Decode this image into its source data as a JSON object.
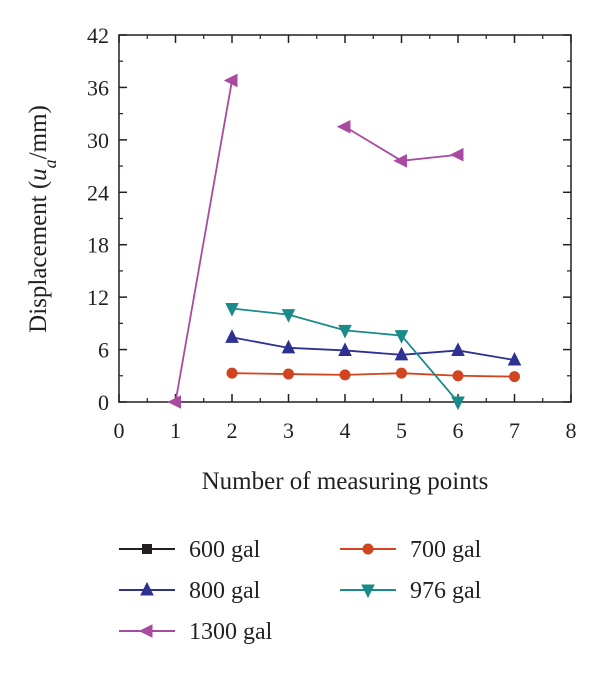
{
  "chart_data": {
    "type": "line",
    "xlabel": "Number of measuring points",
    "ylabel": {
      "prefix": "Displacement (",
      "var": "u",
      "sub": "a",
      "suffix": "/mm)"
    },
    "xlim": [
      0,
      8
    ],
    "ylim": [
      0,
      42
    ],
    "xticks": [
      0,
      1,
      2,
      3,
      4,
      5,
      6,
      7,
      8
    ],
    "yticks": [
      0,
      6,
      12,
      18,
      24,
      30,
      36,
      42
    ],
    "grid": false,
    "legend_position": "bottom",
    "series": [
      {
        "name": "600 gal",
        "color": "#231f20",
        "marker": "square",
        "points": []
      },
      {
        "name": "700 gal",
        "color": "#d2431f",
        "marker": "circle",
        "points": [
          [
            2,
            3.3
          ],
          [
            3,
            3.2
          ],
          [
            4,
            3.1
          ],
          [
            5,
            3.3
          ],
          [
            6,
            3.0
          ],
          [
            7,
            2.9
          ]
        ]
      },
      {
        "name": "800 gal",
        "color": "#2e3192",
        "marker": "triangle-up",
        "points": [
          [
            2,
            7.4
          ],
          [
            3,
            6.2
          ],
          [
            4,
            5.9
          ],
          [
            5,
            5.4
          ],
          [
            6,
            5.9
          ],
          [
            7,
            4.8
          ]
        ]
      },
      {
        "name": "976 gal",
        "color": "#1b8a8a",
        "marker": "triangle-down",
        "points": [
          [
            2,
            10.7
          ],
          [
            3,
            10.0
          ],
          [
            4,
            8.2
          ],
          [
            5,
            7.6
          ],
          [
            6,
            0.0
          ]
        ]
      },
      {
        "name": "1300 gal",
        "color": "#a84ba0",
        "marker": "triangle-left",
        "segments": [
          [
            [
              1,
              0.0
            ],
            [
              2,
              36.8
            ]
          ],
          [
            [
              4,
              31.5
            ],
            [
              5,
              27.6
            ],
            [
              6,
              28.3
            ]
          ]
        ]
      }
    ]
  }
}
